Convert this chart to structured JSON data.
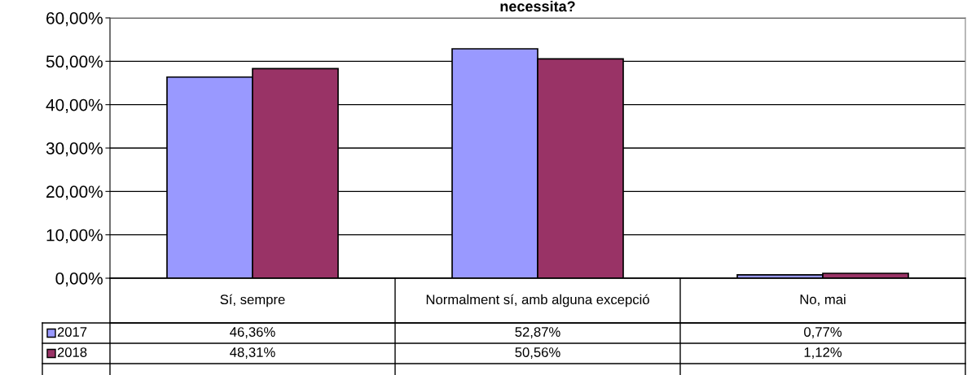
{
  "chart_data": {
    "type": "bar",
    "title": "necessita?",
    "categories": [
      "Sí, sempre",
      "Normalment sí, amb alguna excepció",
      "No, mai"
    ],
    "series": [
      {
        "name": "2017",
        "color": "#9999ff",
        "values": [
          46.36,
          52.87,
          0.77
        ],
        "value_labels": [
          "46,36%",
          "52,87%",
          "0,77%"
        ]
      },
      {
        "name": "2018",
        "color": "#993366",
        "values": [
          48.31,
          50.56,
          1.12
        ],
        "value_labels": [
          "48,31%",
          "50,56%",
          "1,12%"
        ]
      }
    ],
    "ylim": [
      0,
      60
    ],
    "yticks": [
      {
        "value": 0,
        "label": "0,00%"
      },
      {
        "value": 10,
        "label": "10,00%"
      },
      {
        "value": 20,
        "label": "20,00%"
      },
      {
        "value": 30,
        "label": "30,00%"
      },
      {
        "value": 40,
        "label": "40,00%"
      },
      {
        "value": 50,
        "label": "50,00%"
      },
      {
        "value": 60,
        "label": "60,00%"
      }
    ],
    "grid": "y",
    "legend": "bottom"
  }
}
